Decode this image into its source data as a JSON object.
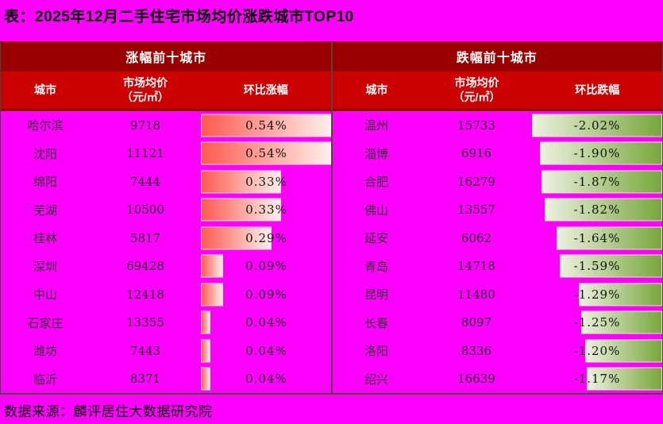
{
  "title": "表：2025年12月二手住宅市场均价涨跌城市TOP10",
  "source": "数据来源：麟评居住大数据研究院",
  "colors": {
    "background": "#FF00FF",
    "band_top": "#9B0000",
    "band_cols": "#CC0000",
    "rise_bar_start": "#FF5A50",
    "rise_bar_end": "#FFF0EC",
    "fall_bar_start": "#EBF1DE",
    "fall_bar_end": "#78A73C"
  },
  "panels": [
    {
      "header": "涨幅前十城市",
      "columns": {
        "city": "城市",
        "price_line1": "市场均价",
        "price_line2": "（元/㎡）",
        "change": "环比涨幅"
      },
      "anchor": "left",
      "max": 0.54,
      "rows": [
        {
          "city": "哈尔滨",
          "price": "9718",
          "change": "0.54%",
          "value": 0.54
        },
        {
          "city": "沈阳",
          "price": "11121",
          "change": "0.54%",
          "value": 0.54
        },
        {
          "city": "绵阳",
          "price": "7444",
          "change": "0.33%",
          "value": 0.33
        },
        {
          "city": "芜湖",
          "price": "10500",
          "change": "0.33%",
          "value": 0.33
        },
        {
          "city": "桂林",
          "price": "5817",
          "change": "0.29%",
          "value": 0.29
        },
        {
          "city": "深圳",
          "price": "69428",
          "change": "0.09%",
          "value": 0.09
        },
        {
          "city": "中山",
          "price": "12418",
          "change": "0.09%",
          "value": 0.09
        },
        {
          "city": "石家庄",
          "price": "13355",
          "change": "0.04%",
          "value": 0.04
        },
        {
          "city": "潍坊",
          "price": "7443",
          "change": "0.04%",
          "value": 0.04
        },
        {
          "city": "临沂",
          "price": "8371",
          "change": "0.04%",
          "value": 0.04
        }
      ]
    },
    {
      "header": "跌幅前十城市",
      "columns": {
        "city": "城市",
        "price_line1": "市场均价",
        "price_line2": "（元/㎡）",
        "change": "环比跌幅"
      },
      "anchor": "right",
      "max": 2.02,
      "rows": [
        {
          "city": "温州",
          "price": "15733",
          "change": "-2.02%",
          "value": -2.02
        },
        {
          "city": "淄博",
          "price": "6916",
          "change": "-1.90%",
          "value": -1.9
        },
        {
          "city": "合肥",
          "price": "16279",
          "change": "-1.87%",
          "value": -1.87
        },
        {
          "city": "佛山",
          "price": "13557",
          "change": "-1.82%",
          "value": -1.82
        },
        {
          "city": "延安",
          "price": "6062",
          "change": "-1.64%",
          "value": -1.64
        },
        {
          "city": "青岛",
          "price": "14718",
          "change": "-1.59%",
          "value": -1.59
        },
        {
          "city": "昆明",
          "price": "11480",
          "change": "-1.29%",
          "value": -1.29
        },
        {
          "city": "长春",
          "price": "8097",
          "change": "-1.25%",
          "value": -1.25
        },
        {
          "city": "洛阳",
          "price": "8336",
          "change": "-1.20%",
          "value": -1.2
        },
        {
          "city": "绍兴",
          "price": "16639",
          "change": "-1.17%",
          "value": -1.17
        }
      ]
    }
  ],
  "chart_data": [
    {
      "type": "bar",
      "orientation": "horizontal",
      "title": "涨幅前十城市",
      "categories": [
        "哈尔滨",
        "沈阳",
        "绵阳",
        "芜湖",
        "桂林",
        "深圳",
        "中山",
        "石家庄",
        "潍坊",
        "临沂"
      ],
      "series": [
        {
          "name": "市场均价（元/㎡）",
          "values": [
            9718,
            11121,
            7444,
            10500,
            5817,
            69428,
            12418,
            13355,
            7443,
            8371
          ]
        },
        {
          "name": "环比涨幅(%)",
          "values": [
            0.54,
            0.54,
            0.33,
            0.33,
            0.29,
            0.09,
            0.09,
            0.04,
            0.04,
            0.04
          ]
        }
      ],
      "xlabel": "环比涨幅",
      "ylabel": "城市",
      "xlim": [
        0,
        0.54
      ],
      "grid": false,
      "legend_position": "none"
    },
    {
      "type": "bar",
      "orientation": "horizontal",
      "title": "跌幅前十城市",
      "categories": [
        "温州",
        "淄博",
        "合肥",
        "佛山",
        "延安",
        "青岛",
        "昆明",
        "长春",
        "洛阳",
        "绍兴"
      ],
      "series": [
        {
          "name": "市场均价（元/㎡）",
          "values": [
            15733,
            6916,
            16279,
            13557,
            6062,
            14718,
            11480,
            8097,
            8336,
            16639
          ]
        },
        {
          "name": "环比跌幅(%)",
          "values": [
            -2.02,
            -1.9,
            -1.87,
            -1.82,
            -1.64,
            -1.59,
            -1.29,
            -1.25,
            -1.2,
            -1.17
          ]
        }
      ],
      "xlabel": "环比跌幅",
      "ylabel": "城市",
      "xlim": [
        -2.02,
        0
      ],
      "grid": false,
      "legend_position": "none"
    }
  ]
}
